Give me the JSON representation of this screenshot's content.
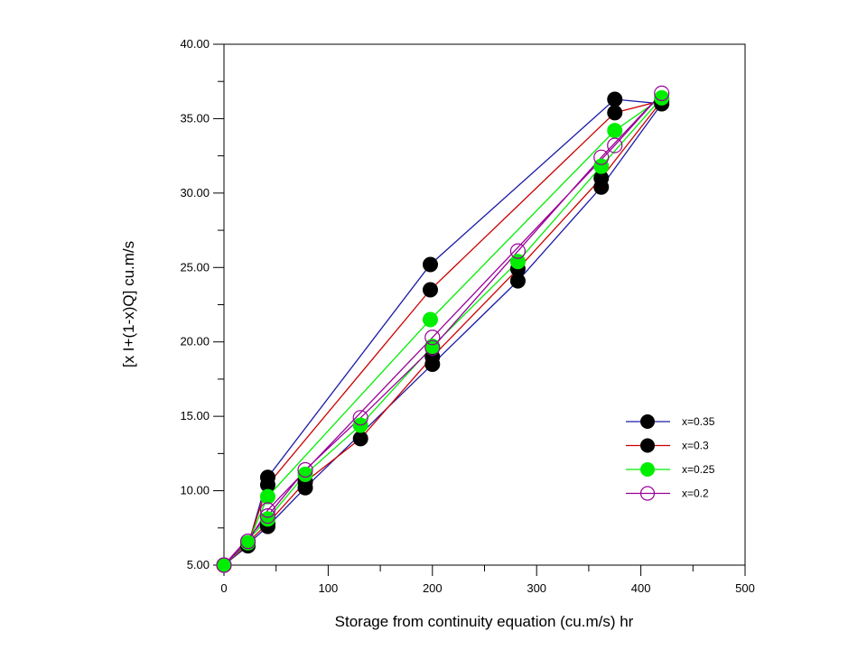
{
  "chart_data": {
    "type": "scatter",
    "xlabel": "Storage from continuity equation (cu.m/s) hr",
    "ylabel": "[x I+(1-x)Q] cu.m/s",
    "xlim": [
      0,
      500
    ],
    "ylim": [
      5,
      40
    ],
    "x_ticks": [
      "0",
      "100",
      "200",
      "300",
      "400",
      "500"
    ],
    "y_ticks": [
      "5.00",
      "10.00",
      "15.00",
      "20.00",
      "25.00",
      "30.00",
      "35.00",
      "40.00"
    ],
    "grid": false,
    "legend_position": "bottom-right",
    "series": [
      {
        "name": "x=0.35",
        "line_color": "#1a1aa6",
        "marker": "filled-circle",
        "marker_color": "#000000",
        "points": [
          [
            0,
            5.0
          ],
          [
            23,
            6.3
          ],
          [
            42,
            10.9
          ],
          [
            198,
            25.2
          ],
          [
            375,
            36.3
          ],
          [
            420,
            36.0
          ],
          [
            362,
            30.4
          ],
          [
            282,
            24.1
          ],
          [
            200,
            18.5
          ],
          [
            78,
            10.2
          ],
          [
            42,
            7.6
          ],
          [
            0,
            5.0
          ]
        ]
      },
      {
        "name": "x=0.3",
        "line_color": "#cc0000",
        "marker": "filled-circle",
        "marker_color": "#000000",
        "points": [
          [
            0,
            5.0
          ],
          [
            23,
            6.4
          ],
          [
            42,
            10.4
          ],
          [
            198,
            23.5
          ],
          [
            375,
            35.4
          ],
          [
            420,
            36.2
          ],
          [
            362,
            31.0
          ],
          [
            282,
            24.9
          ],
          [
            200,
            19.0
          ],
          [
            131,
            13.5
          ],
          [
            78,
            10.6
          ],
          [
            42,
            7.8
          ],
          [
            0,
            5.0
          ]
        ]
      },
      {
        "name": "x=0.25",
        "line_color": "#00ee00",
        "marker": "filled-circle",
        "marker_color": "#00ee00",
        "points": [
          [
            0,
            5.0
          ],
          [
            23,
            6.5
          ],
          [
            42,
            9.6
          ],
          [
            198,
            21.5
          ],
          [
            375,
            34.2
          ],
          [
            420,
            36.4
          ],
          [
            362,
            31.8
          ],
          [
            282,
            25.4
          ],
          [
            200,
            19.7
          ],
          [
            131,
            14.4
          ],
          [
            78,
            11.1
          ],
          [
            42,
            8.1
          ],
          [
            0,
            5.0
          ]
        ]
      },
      {
        "name": "x=0.2",
        "line_color": "#990099",
        "marker": "open-circle",
        "marker_color": "#990099",
        "points": [
          [
            0,
            5.0
          ],
          [
            23,
            6.6
          ],
          [
            42,
            8.7
          ],
          [
            200,
            20.3
          ],
          [
            375,
            33.2
          ],
          [
            420,
            36.7
          ],
          [
            362,
            32.4
          ],
          [
            282,
            26.1
          ],
          [
            200,
            19.6
          ],
          [
            131,
            14.9
          ],
          [
            78,
            11.4
          ],
          [
            42,
            8.3
          ],
          [
            0,
            5.0
          ]
        ]
      }
    ]
  }
}
